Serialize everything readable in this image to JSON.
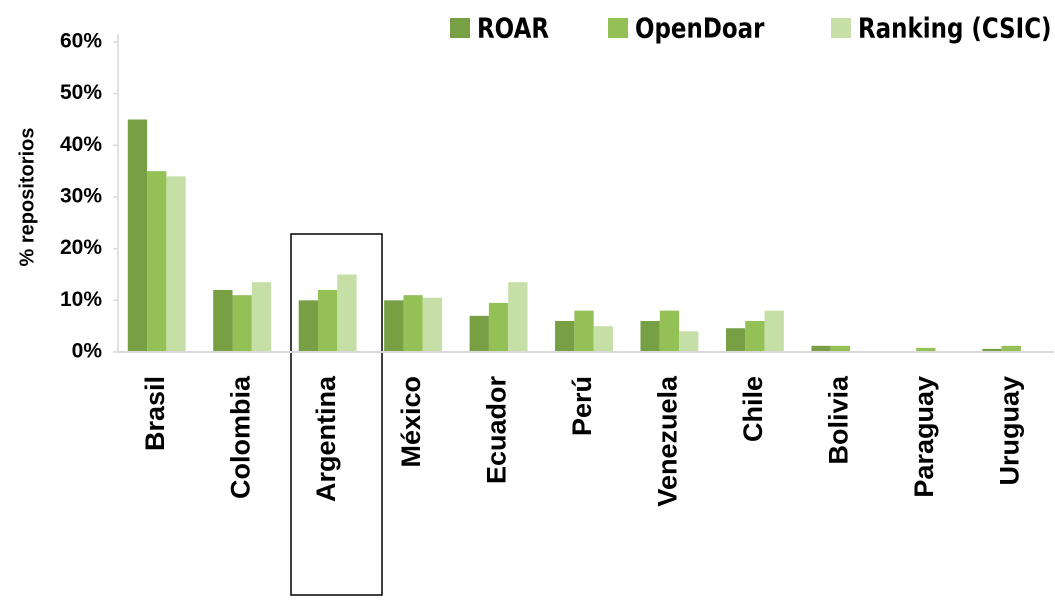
{
  "chart_data": {
    "type": "bar",
    "y_label": "% repositorios",
    "categories": [
      "Brasil",
      "Colombia",
      "Argentina",
      "México",
      "Ecuador",
      "Perú",
      "Venezuela",
      "Chile",
      "Bolivia",
      "Paraguay",
      "Uruguay"
    ],
    "series": [
      {
        "name": "ROAR",
        "color": "#77a044",
        "values": [
          45,
          12,
          10,
          10,
          7,
          6,
          6,
          4.6,
          1.2,
          0,
          0.6
        ]
      },
      {
        "name": "OpenDoar",
        "color": "#93c156",
        "values": [
          35,
          11,
          12,
          11,
          9.5,
          8,
          8,
          6,
          1.2,
          0.8,
          1.2
        ]
      },
      {
        "name": "Ranking (CSIC)",
        "color": "#c6dfa6",
        "values": [
          34,
          13.5,
          15,
          10.5,
          13.5,
          5,
          4,
          8,
          0,
          0,
          0
        ]
      }
    ],
    "ylim": [
      0,
      60
    ],
    "yticks": [
      {
        "value": 0,
        "label": "0%"
      },
      {
        "value": 10,
        "label": "10%"
      },
      {
        "value": 20,
        "label": "20%"
      },
      {
        "value": 30,
        "label": "30%"
      },
      {
        "value": 40,
        "label": "40%"
      },
      {
        "value": 50,
        "label": "50%"
      },
      {
        "value": 60,
        "label": "60%"
      }
    ],
    "legend": "top",
    "grid": false
  }
}
